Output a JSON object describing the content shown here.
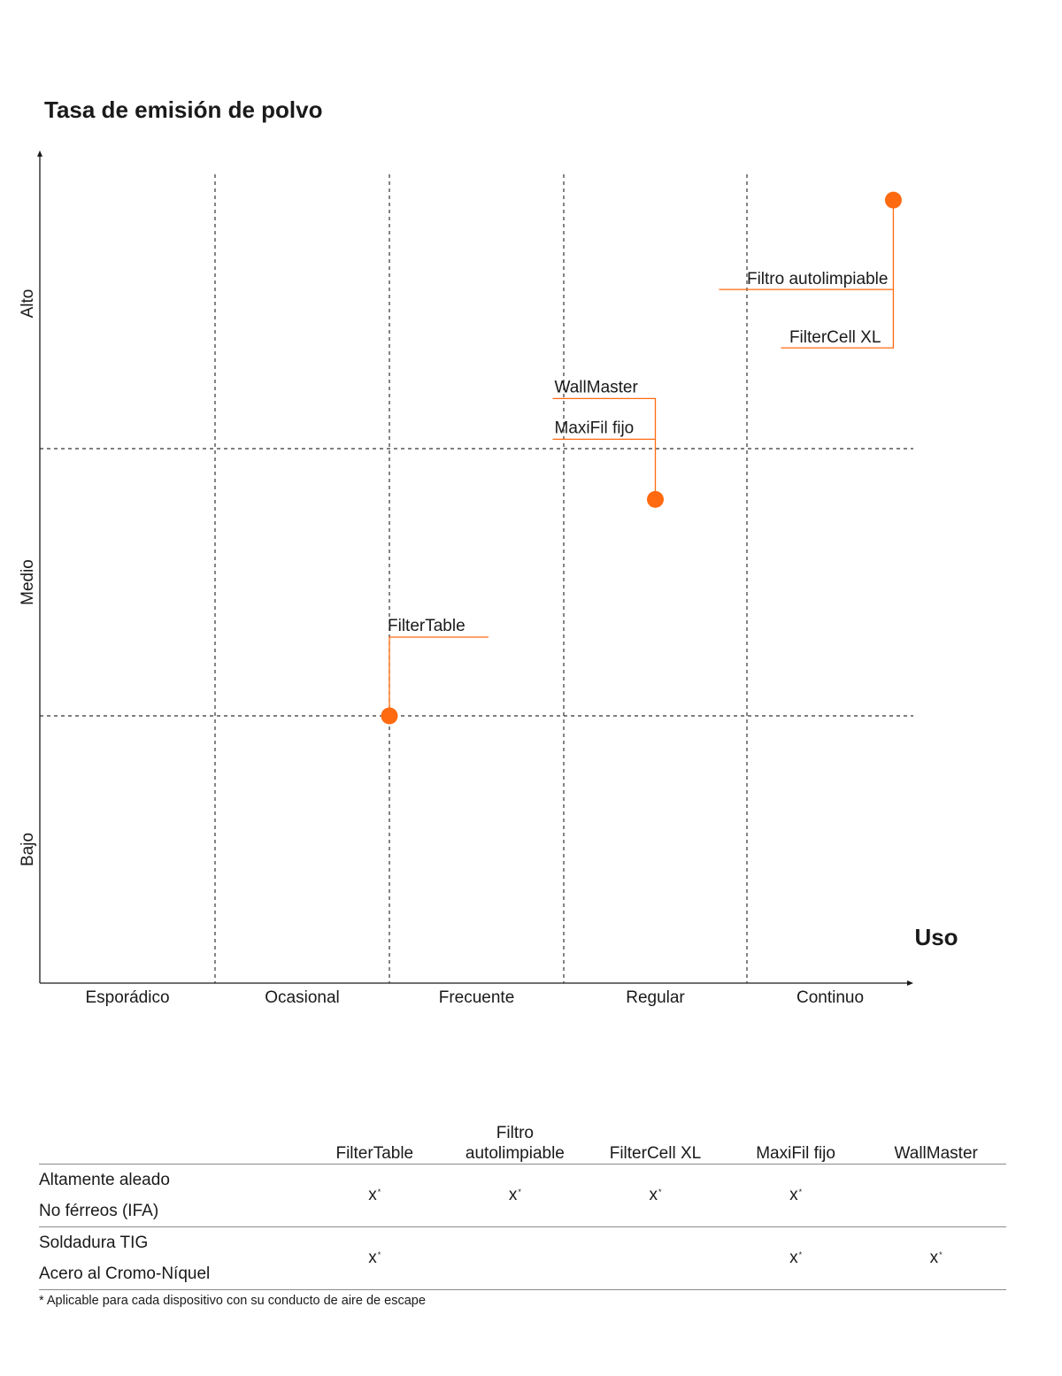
{
  "chart_data": {
    "type": "scatter",
    "title": "Tasa de emisión de polvo",
    "xlabel": "Uso",
    "x_categories": [
      "Esporádico",
      "Ocasional",
      "Frecuente",
      "Regular",
      "Continuo"
    ],
    "y_levels": [
      "Bajo",
      "Medio",
      "Alto"
    ],
    "grid": true,
    "points": [
      {
        "x": 2.0,
        "y": 1.0,
        "labels": [
          "FilterTable"
        ]
      },
      {
        "x": 3.5,
        "y": 1.81,
        "labels": [
          "WallMaster",
          "MaxiFil fijo"
        ]
      },
      {
        "x": 4.88,
        "y": 2.93,
        "labels": [
          "Filtro autolimpiable",
          "FilterCell XL"
        ]
      }
    ]
  },
  "colors": {
    "accent": "#ff6a10",
    "axis": "#1a1a1a",
    "grid": "#333333",
    "rule": "#8a8a8a"
  },
  "matrix": {
    "columns": [
      [
        "FilterTable"
      ],
      [
        "Filtro",
        "autolimpiable"
      ],
      [
        "FilterCell XL"
      ],
      [
        "MaxiFil fijo"
      ],
      [
        "WallMaster"
      ]
    ],
    "rows": [
      {
        "labels": [
          "Altamente aleado",
          "No férreos (IFA)"
        ],
        "marks": [
          true,
          true,
          true,
          true,
          false
        ]
      },
      {
        "labels": [
          "Soldadura TIG",
          "Acero al Cromo-Níquel"
        ],
        "marks": [
          true,
          false,
          false,
          true,
          true
        ]
      }
    ],
    "mark_text": "x",
    "mark_sup": "*",
    "footnote": "* Aplicable para cada dispositivo con su conducto de aire de escape"
  }
}
